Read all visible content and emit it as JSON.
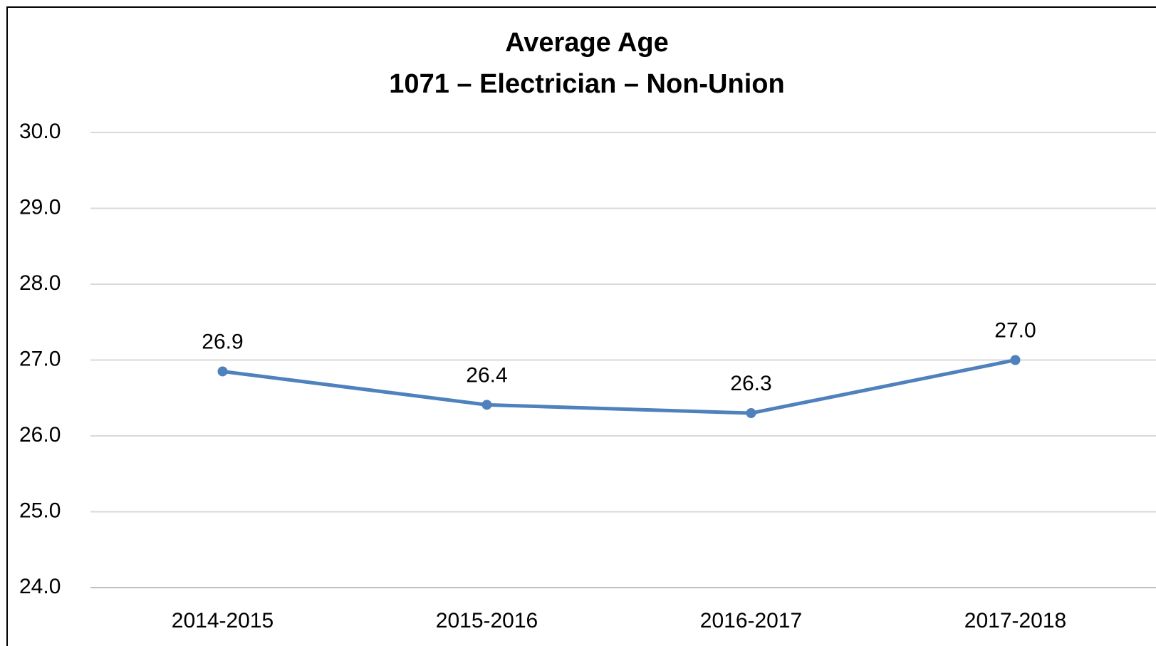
{
  "chart_data": {
    "type": "line",
    "title": "Average Age",
    "subtitle": "1071 – Electrician – Non-Union",
    "categories": [
      "2014-2015",
      "2015-2016",
      "2016-2017",
      "2017-2018"
    ],
    "series": [
      {
        "color": "#4f81bd",
        "values": [
          26.85,
          26.41,
          26.3,
          27
        ],
        "value_labels": [
          "26.9",
          "26.4",
          "26.3",
          "27.0"
        ]
      }
    ],
    "ylim": [
      24,
      30
    ],
    "yticks": [
      {
        "value": 24,
        "label": "24.0"
      },
      {
        "value": 25,
        "label": "25.0"
      },
      {
        "value": 26,
        "label": "26.0"
      },
      {
        "value": 27,
        "label": "27.0"
      },
      {
        "value": 28,
        "label": "28.0"
      },
      {
        "value": 29,
        "label": "29.0"
      },
      {
        "value": 30,
        "label": "30.0"
      }
    ],
    "grid": true
  }
}
